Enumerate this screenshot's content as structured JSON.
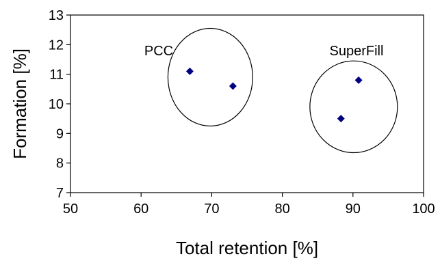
{
  "chart_data": {
    "type": "scatter",
    "title": "",
    "xlabel": "Total retention [%]",
    "ylabel": "Formation [%]",
    "xlim": [
      50,
      100
    ],
    "ylim": [
      7,
      13
    ],
    "xticks": [
      50,
      60,
      70,
      80,
      90,
      100
    ],
    "yticks": [
      7,
      8,
      9,
      10,
      11,
      12,
      13
    ],
    "grid": false,
    "legend": "none",
    "marker_color": "#000080",
    "series": [
      {
        "points": [
          {
            "x": 66.9,
            "y": 11.1
          },
          {
            "x": 73.0,
            "y": 10.6
          },
          {
            "x": 88.3,
            "y": 9.5
          },
          {
            "x": 90.8,
            "y": 10.8
          }
        ]
      }
    ],
    "annotations": [
      {
        "text": "PCC",
        "x": 62.5,
        "y": 11.8
      },
      {
        "text": "SuperFill",
        "x": 90.5,
        "y": 11.8
      }
    ],
    "circles": [
      {
        "cx": 69.8,
        "cy": 10.9,
        "rx": 6.0,
        "ry": 1.65
      },
      {
        "cx": 90.1,
        "cy": 9.9,
        "rx": 6.2,
        "ry": 1.55
      }
    ]
  }
}
